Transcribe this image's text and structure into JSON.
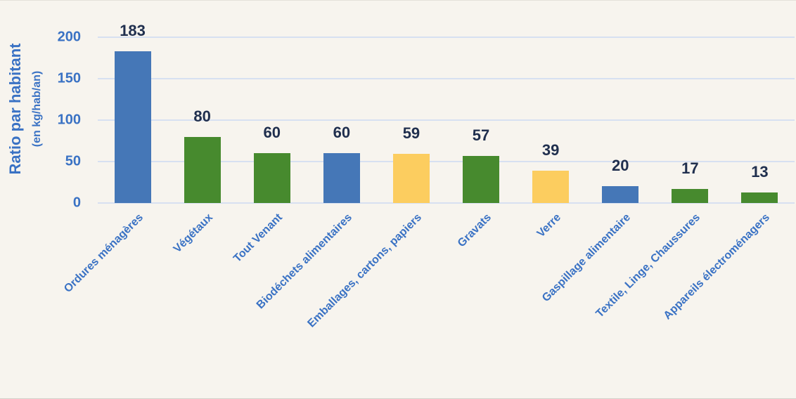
{
  "page": {
    "background": "#f7f4ee"
  },
  "chart_data": {
    "type": "bar",
    "title": "",
    "xlabel": "",
    "ylabel": "Ratio par habitant",
    "ylabel_sub": "(en kg/hab/an)",
    "categories": [
      "Ordures ménagères",
      "Végétaux",
      "Tout Venant",
      "Biodéchets alimentaires",
      "Emballages, cartons, papiers",
      "Gravats",
      "Verre",
      "Gaspillage alimentaire",
      "Textile, Linge, Chaussures",
      "Appareils électroménagers"
    ],
    "values": [
      183,
      80,
      60,
      60,
      59,
      57,
      39,
      20,
      17,
      13
    ],
    "bar_colors": [
      "#4577b7",
      "#478a2e",
      "#478a2e",
      "#4577b7",
      "#fccd5f",
      "#478a2e",
      "#fccd5f",
      "#4577b7",
      "#478a2e",
      "#478a2e"
    ],
    "yticks": [
      0,
      50,
      100,
      150,
      200
    ],
    "ylim": [
      0,
      200
    ],
    "grid": true,
    "legend": "none",
    "colors": {
      "bar_blue": "#4577b7",
      "bar_green": "#478a2e",
      "bar_yellow": "#fccd5f",
      "axis_label_blue": "#3a72c4",
      "value_label_navy": "#202f4e",
      "gridline": "#d7e0f1",
      "background": "#f7f4ee"
    }
  }
}
